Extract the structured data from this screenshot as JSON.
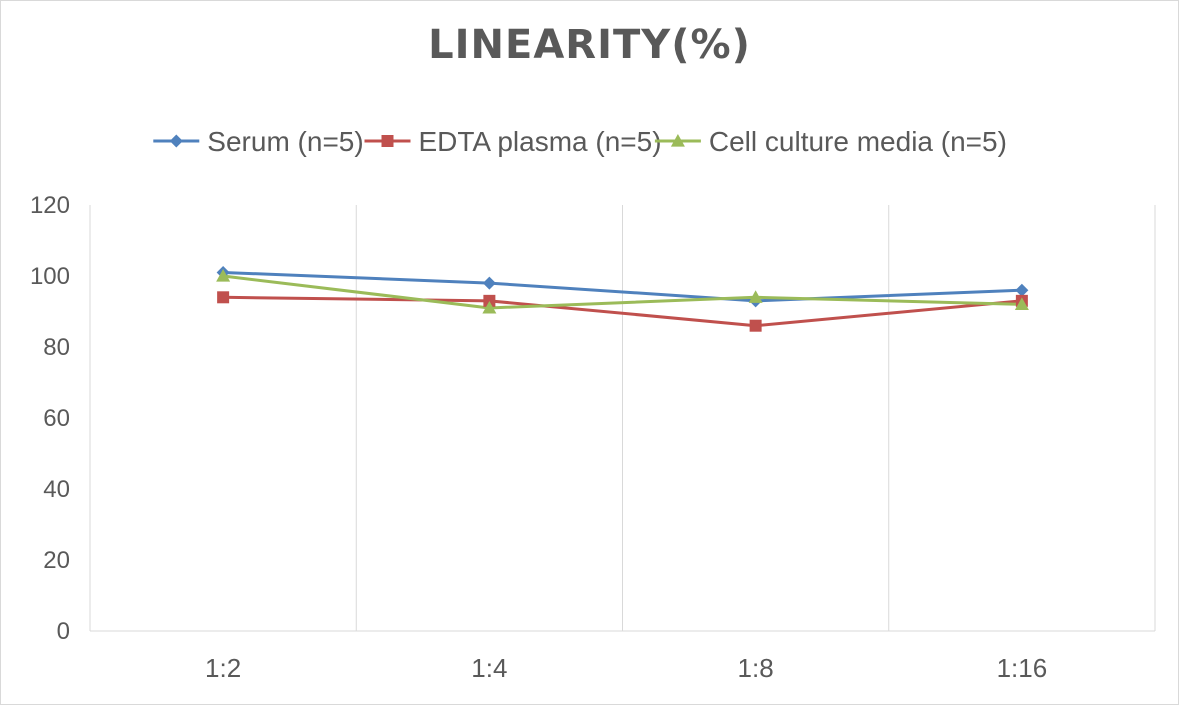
{
  "chart_data": {
    "type": "line",
    "title": "LINEARITY(%)",
    "categories": [
      "1:2",
      "1:4",
      "1:8",
      "1:16"
    ],
    "ylim": [
      0,
      120
    ],
    "yticks": [
      0,
      20,
      40,
      60,
      80,
      100,
      120
    ],
    "grid": "vertical",
    "legend_position": "top",
    "series": [
      {
        "name": "Serum (n=5)",
        "color": "#4f81bd",
        "marker": "diamond",
        "values": [
          101,
          98,
          93,
          96
        ]
      },
      {
        "name": "EDTA plasma (n=5)",
        "color": "#c0504d",
        "marker": "square",
        "values": [
          94,
          93,
          86,
          93
        ]
      },
      {
        "name": "Cell culture media (n=5)",
        "color": "#9bbb59",
        "marker": "triangle",
        "values": [
          100,
          91,
          94,
          92
        ]
      }
    ]
  }
}
